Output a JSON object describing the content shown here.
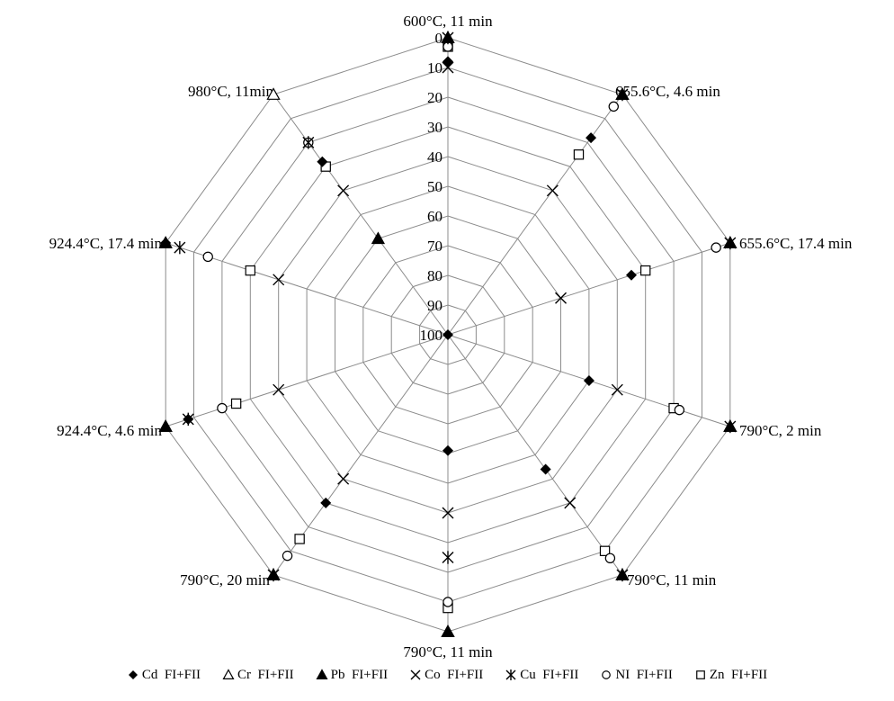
{
  "chart_data": {
    "type": "radar",
    "categories": [
      "600°C, 11 min",
      "655.6°C, 4.6 min",
      "655.6°C, 17.4 min",
      "790°C, 2 min",
      "790°C, 11 min",
      "790°C, 11 min",
      "790°C, 20 min",
      "924.4°C, 4.6 min",
      "924.4°C, 17.4 min",
      "980°C, 11min"
    ],
    "radial_axis": {
      "range": [
        0,
        100
      ],
      "reversed": true,
      "ticks": [
        "0",
        "10",
        "20",
        "30",
        "40",
        "50",
        "60",
        "70",
        "80",
        "90",
        "100"
      ]
    },
    "series": [
      {
        "name": "Cd  FI+FII",
        "marker": "diamond-filled",
        "values": [
          8,
          18,
          35,
          50,
          44,
          61,
          30,
          8,
          0,
          28
        ]
      },
      {
        "name": "Cr  FI+FII",
        "marker": "triangle-open",
        "values": [
          0,
          0,
          0,
          0,
          0,
          0,
          0,
          0,
          0,
          0
        ]
      },
      {
        "name": "Pb  FI+FII",
        "marker": "triangle-filled",
        "values": [
          0,
          0,
          0,
          0,
          0,
          0,
          0,
          0,
          0,
          60
        ]
      },
      {
        "name": "Co  FI+FII",
        "marker": "x",
        "values": [
          10,
          40,
          60,
          40,
          30,
          40,
          40,
          40,
          40,
          40
        ]
      },
      {
        "name": "Cu  FI+FII",
        "marker": "asterisk",
        "values": [
          0,
          0,
          0,
          0,
          0,
          25,
          0,
          8,
          5,
          20
        ]
      },
      {
        "name": "NI  FI+FII",
        "marker": "circle-open",
        "values": [
          3,
          5,
          5,
          18,
          7,
          10,
          8,
          20,
          15,
          20
        ]
      },
      {
        "name": "Zn  FI+FII",
        "marker": "square-open",
        "values": [
          3,
          25,
          30,
          20,
          10,
          8,
          15,
          25,
          30,
          30
        ]
      }
    ]
  }
}
